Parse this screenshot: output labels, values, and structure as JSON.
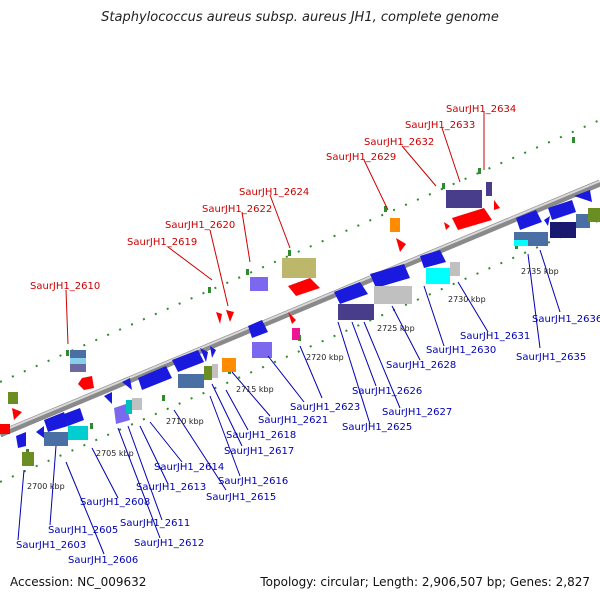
{
  "title": "Staphylococcus aureus subsp. aureus JH1, complete genome",
  "footer": {
    "accession": "Accession: NC_009632",
    "summary": "Topology: circular; Length: 2,906,507 bp; Genes: 2,827"
  },
  "colors": {
    "backbone": "#8a8a8a",
    "tick": "#2e8b2e",
    "gene_forward": "#1a1adf",
    "label_forward": "#0000b3",
    "label_reverse": "#cc0000",
    "highlight": "#ff0000"
  },
  "scale_labels": [
    "2700 kbp",
    "2705 kbp",
    "2710 kbp",
    "2715 kbp",
    "2720 kbp",
    "2725 kbp",
    "2730 kbp",
    "2735 kbp"
  ],
  "gene_labels_top": [
    "SaurJH1_2610",
    "SaurJH1_2619",
    "SaurJH1_2620",
    "SaurJH1_2622",
    "SaurJH1_2624",
    "SaurJH1_2629",
    "SaurJH1_2632",
    "SaurJH1_2633",
    "SaurJH1_2634"
  ],
  "gene_labels_bottom": [
    "SaurJH1_2603",
    "SaurJH1_2605",
    "SaurJH1_2606",
    "SaurJH1_2608",
    "SaurJH1_2611",
    "SaurJH1_2612",
    "SaurJH1_2613",
    "SaurJH1_2614",
    "SaurJH1_2615",
    "SaurJH1_2616",
    "SaurJH1_2617",
    "SaurJH1_2618",
    "SaurJH1_2621",
    "SaurJH1_2623",
    "SaurJH1_2625",
    "SaurJH1_2626",
    "SaurJH1_2627",
    "SaurJH1_2628",
    "SaurJH1_2630",
    "SaurJH1_2631",
    "SaurJH1_2635",
    "SaurJH1_2636"
  ]
}
